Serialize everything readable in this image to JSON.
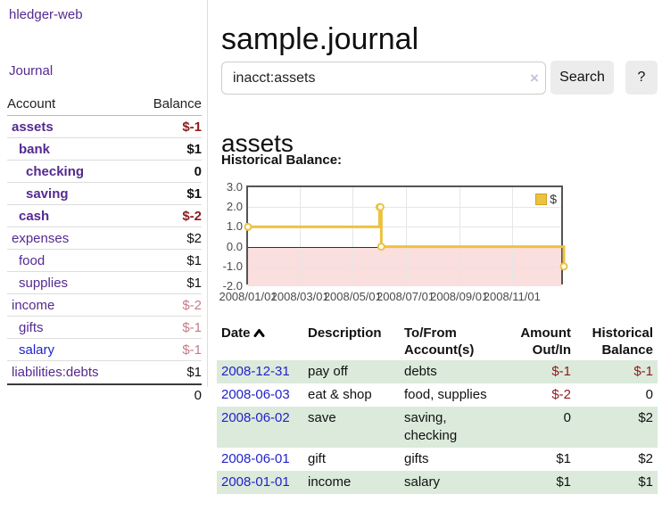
{
  "app": {
    "title": "hledger-web"
  },
  "theme": {
    "link_purple": "#552a90",
    "link_blue": "#2222cc",
    "negative_strong": "#8e1b1b",
    "negative_weak": "#c87b87",
    "row_stripe_green": "#dbeadb",
    "button_gray": "#ececec"
  },
  "sidebar": {
    "journal_link": "Journal",
    "table": {
      "account_header": "Account",
      "balance_header": "Balance",
      "rows": [
        {
          "name": "assets",
          "balance": "$-1",
          "indent": 1,
          "bold": true,
          "balance_class": "neg-strong"
        },
        {
          "name": "bank",
          "balance": "$1",
          "indent": 2,
          "bold": true,
          "balance_class": ""
        },
        {
          "name": "checking",
          "balance": "0",
          "indent": 3,
          "bold": true,
          "balance_class": ""
        },
        {
          "name": "saving",
          "balance": "$1",
          "indent": 3,
          "bold": true,
          "balance_class": ""
        },
        {
          "name": "cash",
          "balance": "$-2",
          "indent": 2,
          "bold": true,
          "balance_class": "neg-strong"
        },
        {
          "name": "expenses",
          "balance": "$2",
          "indent": 1,
          "bold": false,
          "balance_class": ""
        },
        {
          "name": "food",
          "balance": "$1",
          "indent": 2,
          "bold": false,
          "balance_class": ""
        },
        {
          "name": "supplies",
          "balance": "$1",
          "indent": 2,
          "bold": false,
          "balance_class": ""
        },
        {
          "name": "income",
          "balance": "$-2",
          "indent": 1,
          "bold": false,
          "balance_class": "neg-weak"
        },
        {
          "name": "gifts",
          "balance": "$-1",
          "indent": 2,
          "bold": false,
          "balance_class": "neg-weak"
        },
        {
          "name": "salary",
          "balance": "$-1",
          "indent": 2,
          "bold": false,
          "balance_class": "neg-weak",
          "link_color": "blue"
        },
        {
          "name": "liabilities:debts",
          "balance": "$1",
          "indent": 1,
          "bold": false,
          "balance_class": ""
        }
      ],
      "total": "0"
    }
  },
  "main": {
    "page_title": "sample.journal",
    "search": {
      "value": "inacct:assets",
      "clear_label": "×",
      "search_button": "Search",
      "help_button": "?"
    },
    "section_title": "assets",
    "chart_title": "Historical Balance:"
  },
  "chart_data": {
    "type": "line",
    "step": true,
    "title": "Historical Balance",
    "x_start": "2008-01-01",
    "x_end": "2009-01-01",
    "ylim": [
      -2,
      3
    ],
    "yticks": [
      "3.0",
      "2.0",
      "1.0",
      "0.0",
      "-1.0",
      "-2.0"
    ],
    "xticks": [
      {
        "label": "2008/01/01",
        "x": "2008-01-01"
      },
      {
        "label": "2008/03/01",
        "x": "2008-03-01"
      },
      {
        "label": "2008/05/01",
        "x": "2008-05-01"
      },
      {
        "label": "2008/07/01",
        "x": "2008-07-01"
      },
      {
        "label": "2008/09/01",
        "x": "2008-09-01"
      },
      {
        "label": "2008/11/01",
        "x": "2008-11-01"
      }
    ],
    "grid": true,
    "legend_position": "top-right",
    "negative_fill": "#fbdede",
    "zero_line_color": "#a40000",
    "series": [
      {
        "name": "$",
        "color": "#edc240",
        "points": [
          {
            "x": "2008-01-01",
            "y": 1
          },
          {
            "x": "2008-06-01",
            "y": 2
          },
          {
            "x": "2008-06-02",
            "y": 2
          },
          {
            "x": "2008-06-03",
            "y": 0
          },
          {
            "x": "2008-12-31",
            "y": -1
          }
        ]
      }
    ]
  },
  "register": {
    "headers": {
      "date": "Date",
      "description": "Description",
      "accounts": "To/From Account(s)",
      "amount": "Amount Out/In",
      "balance": "Historical Balance"
    },
    "rows": [
      {
        "date": "2008-12-31",
        "description": "pay off",
        "accounts": "debts",
        "amount": "$-1",
        "balance": "$-1"
      },
      {
        "date": "2008-06-03",
        "description": "eat & shop",
        "accounts": "food, supplies",
        "amount": "$-2",
        "balance": "0"
      },
      {
        "date": "2008-06-02",
        "description": "save",
        "accounts": "saving, checking",
        "amount": "0",
        "balance": "$2"
      },
      {
        "date": "2008-06-01",
        "description": "gift",
        "accounts": "gifts",
        "amount": "$1",
        "balance": "$2"
      },
      {
        "date": "2008-01-01",
        "description": "income",
        "accounts": "salary",
        "amount": "$1",
        "balance": "$1"
      }
    ]
  }
}
